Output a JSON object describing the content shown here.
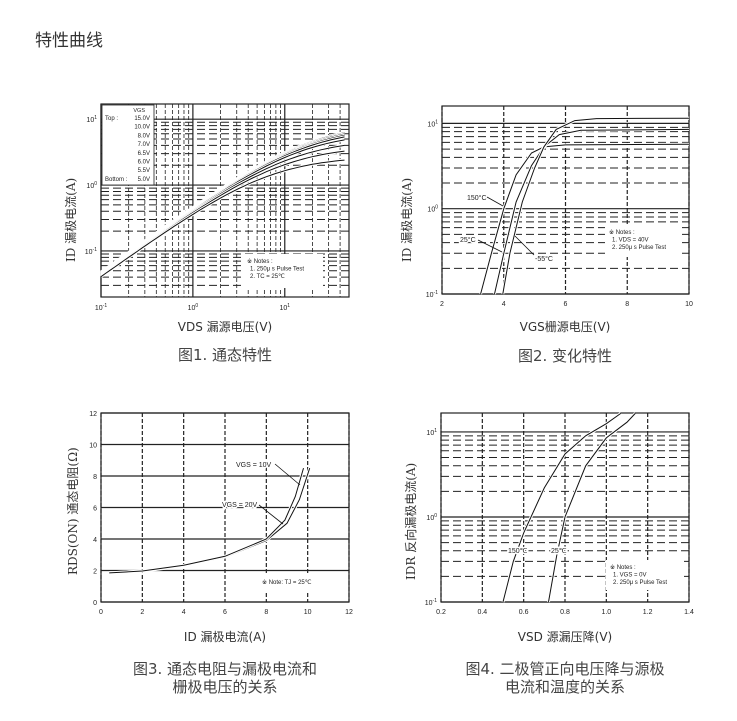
{
  "page_title": "特性曲线",
  "charts": [
    {
      "caption": "图1. 通态特性",
      "xlabel": "VDS 漏源电压(V)",
      "ylabel": "ID 漏极电流(A)"
    },
    {
      "caption": "图2. 变化特性",
      "xlabel": "VGS栅源电压(V)",
      "ylabel": "ID 漏极电流(A)"
    },
    {
      "caption_line1": "图3. 通态电阻与漏极电流和",
      "caption_line2": "栅极电压的关系",
      "xlabel": "ID 漏极电流(A)",
      "ylabel": "RDS(ON) 通态电阻(Ω)"
    },
    {
      "caption_line1": "图4. 二极管正向电压降与源极",
      "caption_line2": "电流和温度的关系",
      "xlabel": "VSD 源漏压降(V)",
      "ylabel": "IDR 反向漏极电流(A)"
    }
  ],
  "chart_data": [
    {
      "type": "line",
      "xscale": "log",
      "yscale": "log",
      "xlim": [
        0.1,
        50
      ],
      "ylim": [
        0.02,
        17
      ],
      "xticks": [
        "10-1",
        "100",
        "101"
      ],
      "yticks": [
        "10-1",
        "100",
        "101"
      ],
      "grid": true,
      "legend": {
        "header": "VGS",
        "top_label": "Top :",
        "bottom_label": "Bottom :",
        "entries": [
          "15.0V",
          "10.0V",
          "8.0V",
          "7.0V",
          "6.5V",
          "6.0V",
          "5.5V",
          "5.0V"
        ],
        "placement": "top-left"
      },
      "notes": [
        "※ Notes :",
        "1. 250μ s Pulse Test",
        "2. TC = 25℃"
      ],
      "series": [
        {
          "name": "15.0V",
          "saturation": 8.8
        },
        {
          "name": "10.0V",
          "saturation": 8.5
        },
        {
          "name": "8.0V",
          "saturation": 8.2
        },
        {
          "name": "7.0V",
          "saturation": 7.8
        },
        {
          "name": "6.5V",
          "saturation": 7.0
        },
        {
          "name": "6.0V",
          "saturation": 5.6
        },
        {
          "name": "5.5V",
          "saturation": 4.5
        },
        {
          "name": "5.0V",
          "saturation": 3.2
        }
      ],
      "x": [
        0.1,
        0.2,
        0.5,
        1,
        2,
        5,
        10,
        20,
        50
      ]
    },
    {
      "type": "line",
      "yscale": "log",
      "xlim": [
        2,
        10
      ],
      "ylim": [
        0.1,
        16
      ],
      "xticks": [
        "2",
        "4",
        "6",
        "8",
        "10"
      ],
      "yticks": [
        "10-1",
        "100",
        "101"
      ],
      "grid": true,
      "notes": [
        "※ Notes :",
        "1. VDS = 40V",
        "2. 250μ s Pulse Test"
      ],
      "series": [
        {
          "name": "150°C",
          "points": [
            [
              3.25,
              0.1
            ],
            [
              3.6,
              0.3
            ],
            [
              4.0,
              1.0
            ],
            [
              4.4,
              2.5
            ],
            [
              4.9,
              4.5
            ],
            [
              5.3,
              5.3
            ],
            [
              6,
              5.6
            ],
            [
              10,
              5.7
            ]
          ]
        },
        {
          "name": "25°C",
          "points": [
            [
              3.7,
              0.1
            ],
            [
              4.0,
              0.3
            ],
            [
              4.4,
              1.2
            ],
            [
              4.9,
              3.2
            ],
            [
              5.3,
              5.3
            ],
            [
              5.8,
              7.4
            ],
            [
              6.5,
              8.3
            ],
            [
              10,
              8.5
            ]
          ]
        },
        {
          "name": "-55°C",
          "points": [
            [
              3.97,
              0.1
            ],
            [
              4.2,
              0.3
            ],
            [
              4.6,
              1.2
            ],
            [
              5.0,
              3.0
            ],
            [
              5.3,
              5.3
            ],
            [
              5.7,
              8.5
            ],
            [
              6.3,
              10.8
            ],
            [
              7,
              11.4
            ],
            [
              10,
              11.5
            ]
          ]
        }
      ]
    },
    {
      "type": "line",
      "xlim": [
        0,
        12
      ],
      "ylim": [
        0,
        12
      ],
      "xticks": [
        "0",
        "2",
        "4",
        "6",
        "8",
        "10",
        "12"
      ],
      "yticks": [
        "0",
        "2",
        "4",
        "6",
        "8",
        "10",
        "12"
      ],
      "grid": true,
      "notes": [
        "※ Note: TJ = 25℃"
      ],
      "series": [
        {
          "name": "VGS = 10V",
          "points": [
            [
              0.4,
              1.85
            ],
            [
              2,
              1.95
            ],
            [
              4,
              2.3
            ],
            [
              6,
              2.85
            ],
            [
              8,
              3.9
            ],
            [
              9,
              5.0
            ],
            [
              9.6,
              6.5
            ],
            [
              10.1,
              8.5
            ]
          ]
        },
        {
          "name": "VGS = 20V",
          "points": [
            [
              0.4,
              1.85
            ],
            [
              2,
              1.97
            ],
            [
              4,
              2.33
            ],
            [
              6,
              2.9
            ],
            [
              8,
              4.0
            ],
            [
              8.9,
              5.2
            ],
            [
              9.4,
              6.7
            ],
            [
              9.8,
              8.5
            ]
          ]
        }
      ]
    },
    {
      "type": "line",
      "yscale": "log",
      "xlim": [
        0.2,
        1.4
      ],
      "ylim": [
        0.1,
        16.7
      ],
      "xticks": [
        "0.2",
        "0.4",
        "0.6",
        "0.8",
        "1.0",
        "1.2",
        "1.4"
      ],
      "yticks": [
        "10-1",
        "100",
        "101"
      ],
      "grid": true,
      "notes": [
        "※ Notes :",
        "1. VGS = 0V",
        "2. 250μ s Pulse Test"
      ],
      "series": [
        {
          "name": "150℃",
          "points": [
            [
              0.5,
              0.1
            ],
            [
              0.55,
              0.3
            ],
            [
              0.6,
              0.65
            ],
            [
              0.7,
              2.2
            ],
            [
              0.8,
              5.5
            ],
            [
              0.9,
              9
            ],
            [
              1.0,
              12.5
            ],
            [
              1.07,
              16.5
            ]
          ]
        },
        {
          "name": "25℃",
          "points": [
            [
              0.72,
              0.1
            ],
            [
              0.76,
              0.35
            ],
            [
              0.8,
              1.0
            ],
            [
              0.9,
              4.0
            ],
            [
              1.0,
              8.5
            ],
            [
              1.1,
              13
            ],
            [
              1.14,
              16.5
            ]
          ]
        }
      ]
    }
  ]
}
